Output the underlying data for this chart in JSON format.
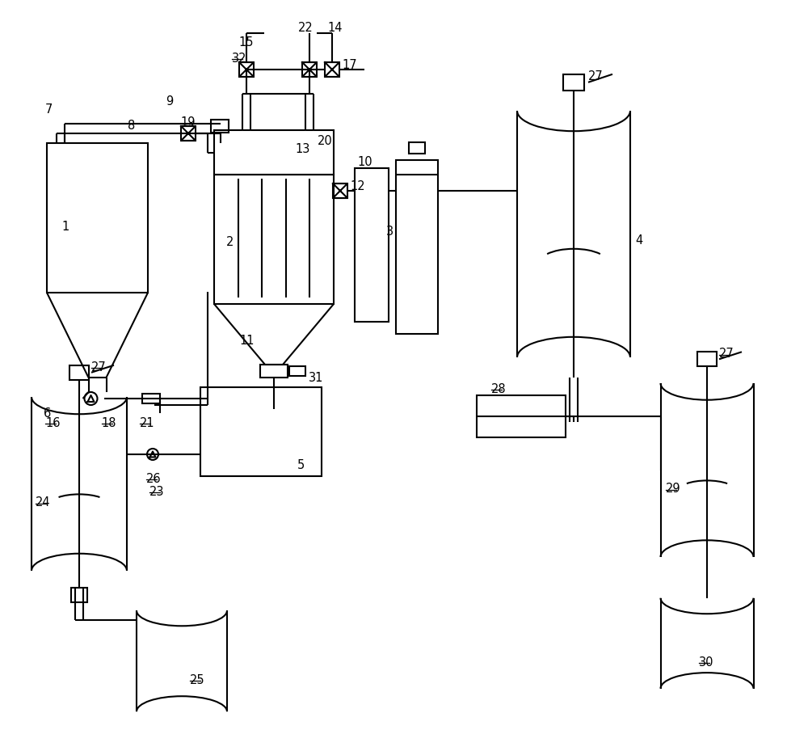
{
  "bg": "#ffffff",
  "lc": "#000000",
  "lw": 1.5,
  "fs": 10.5
}
